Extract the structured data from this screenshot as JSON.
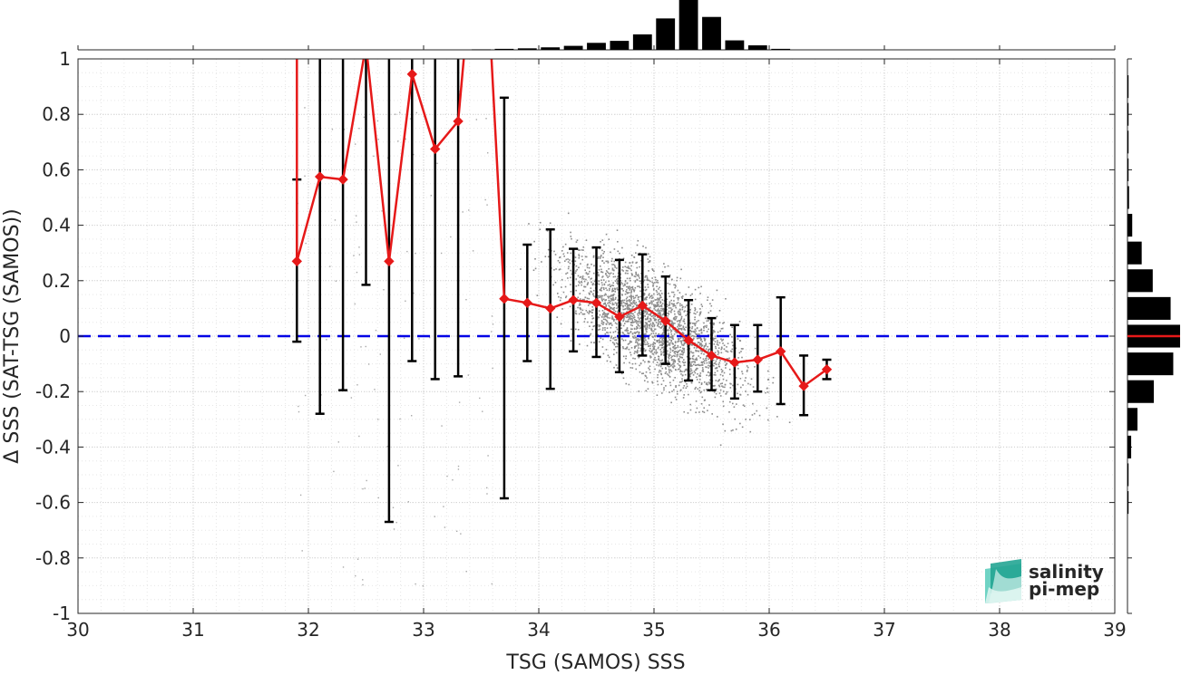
{
  "chart_data": {
    "type": "scatter",
    "xlabel": "TSG (SAMOS) SSS",
    "ylabel": "Δ SSS (SAT-TSG (SAMOS))",
    "xlim": [
      30,
      39
    ],
    "ylim": [
      -1,
      1
    ],
    "xticks": [
      "30",
      "31",
      "32",
      "33",
      "34",
      "35",
      "36",
      "37",
      "38",
      "39"
    ],
    "yticks": [
      "-1",
      "-0.8",
      "-0.6",
      "-0.4",
      "-0.2",
      "0",
      "0.2",
      "0.4",
      "0.6",
      "0.8",
      "1"
    ],
    "grid": true,
    "minor_grid": true,
    "zero_line": {
      "y": 0,
      "color": "#0000e6",
      "style": "dashed"
    },
    "binned_series": {
      "color": "#e61919",
      "x": [
        31.9,
        32.1,
        32.3,
        32.5,
        32.7,
        32.9,
        33.1,
        33.3,
        33.5,
        33.7,
        33.9,
        34.1,
        34.3,
        34.5,
        34.7,
        34.9,
        35.1,
        35.3,
        35.5,
        35.7,
        35.9,
        36.1,
        36.3,
        36.5
      ],
      "mean": [
        0.27,
        0.575,
        0.565,
        1.05,
        0.27,
        0.945,
        0.675,
        0.775,
        1.7,
        0.135,
        0.12,
        0.1,
        0.13,
        0.12,
        0.07,
        0.11,
        0.055,
        -0.015,
        -0.07,
        -0.095,
        -0.085,
        -0.055,
        -0.18,
        -0.12
      ],
      "err_low": [
        -0.02,
        -0.28,
        -0.195,
        0.185,
        -0.67,
        -0.09,
        -0.155,
        -0.145,
        null,
        -0.585,
        -0.09,
        -0.19,
        -0.055,
        -0.075,
        -0.13,
        -0.07,
        -0.1,
        -0.16,
        -0.195,
        -0.225,
        -0.2,
        -0.245,
        -0.285,
        -0.155
      ],
      "err_high": [
        0.565,
        1.3,
        1.4,
        1.6,
        1.6,
        1.5,
        1.6,
        1.7,
        null,
        0.86,
        0.33,
        0.385,
        0.315,
        0.32,
        0.275,
        0.295,
        0.215,
        0.13,
        0.065,
        0.04,
        0.04,
        0.14,
        -0.07,
        -0.085
      ],
      "marker_visible_from_index": 9
    },
    "scatter_color": "#8c8c8c",
    "scatter_cloud": {
      "x_center": 35.0,
      "x_spread": 0.55,
      "slope": -0.22,
      "y_spread": 0.12,
      "x_range": [
        33.5,
        36.2
      ],
      "y_range": [
        -0.7,
        0.85
      ]
    },
    "top_histogram": {
      "bin_centers": [
        33.5,
        33.7,
        33.9,
        34.1,
        34.3,
        34.5,
        34.7,
        34.9,
        35.1,
        35.3,
        35.5,
        35.7,
        35.9,
        36.1
      ],
      "counts": [
        0.01,
        0.02,
        0.03,
        0.05,
        0.08,
        0.14,
        0.18,
        0.31,
        0.63,
        1.0,
        0.66,
        0.19,
        0.09,
        0.02
      ]
    },
    "right_histogram": {
      "bin_centers": [
        0.9,
        0.8,
        0.7,
        0.6,
        0.5,
        0.4,
        0.3,
        0.2,
        0.1,
        0.0,
        -0.1,
        -0.2,
        -0.3,
        -0.4,
        -0.5,
        -0.6
      ],
      "counts": [
        0.01,
        0.01,
        0.01,
        0.02,
        0.03,
        0.09,
        0.27,
        0.48,
        0.82,
        1.0,
        0.87,
        0.5,
        0.19,
        0.07,
        0.02,
        0.01
      ],
      "mean_line_color": "#e61919"
    },
    "logo": {
      "line1": "salinity",
      "line2": "pi-mep",
      "color": "#1aaa98"
    }
  }
}
